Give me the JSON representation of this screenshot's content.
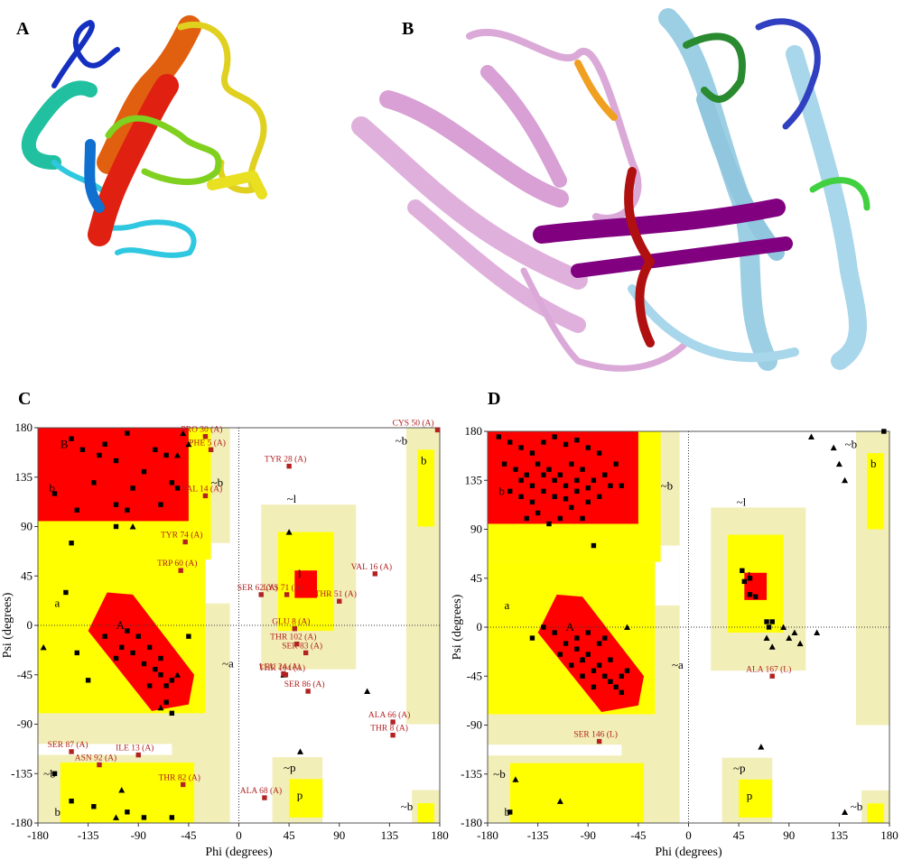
{
  "figure_labels": [
    "A",
    "B"
  ],
  "chart_data": [
    {
      "type": "scatter",
      "panel_label": "C",
      "x_label": "Phi (degrees)",
      "y_label": "Psi (degrees)",
      "xlim": [
        -180,
        180
      ],
      "ylim": [
        -180,
        180
      ],
      "xticks": [
        -180,
        -135,
        -90,
        -45,
        0,
        45,
        90,
        135,
        180
      ],
      "yticks": [
        -180,
        -135,
        -90,
        -45,
        0,
        45,
        90,
        135,
        180
      ],
      "region_labels": [
        "B",
        "b",
        "~b",
        "A",
        "a",
        "~a",
        "l",
        "~l",
        "~b",
        "b",
        "~p",
        "p",
        "~b",
        "~b",
        "b"
      ],
      "series": [
        {
          "marker": "square",
          "color": "#000000",
          "x": [
            -150,
            -140,
            -120,
            -100,
            -110,
            -130,
            -95,
            -85,
            -75,
            -65,
            -60,
            -55,
            -70,
            -110,
            -145,
            -165,
            -150,
            -110,
            -100,
            -125,
            -120,
            -105,
            -95,
            -85,
            -75,
            -70,
            -65,
            -60,
            -90,
            -80,
            -100,
            -110,
            -70,
            -80,
            -65,
            -155,
            -145,
            -135,
            -60,
            -45,
            -150,
            -130,
            -100,
            -85,
            -60,
            -165
          ],
          "values": [
            170,
            160,
            165,
            175,
            150,
            130,
            125,
            140,
            160,
            155,
            130,
            125,
            110,
            110,
            105,
            120,
            75,
            90,
            105,
            155,
            -10,
            -20,
            -25,
            -35,
            -40,
            -45,
            -55,
            -50,
            -10,
            -20,
            -5,
            -30,
            -30,
            -55,
            -70,
            30,
            -25,
            -50,
            -80,
            -10,
            -160,
            -165,
            -170,
            -175,
            -175,
            -135
          ]
        },
        {
          "marker": "triangle",
          "color": "#000000",
          "x": [
            -50,
            -45,
            -55,
            -95,
            -175,
            -70,
            -55,
            -105,
            55,
            45,
            40,
            115,
            -110
          ],
          "values": [
            175,
            165,
            155,
            90,
            -20,
            -75,
            -45,
            -150,
            -115,
            85,
            -45,
            -60,
            -175
          ]
        },
        {
          "marker": "square",
          "color": "#b22222",
          "labels": [
            "PRO 30 (A)",
            "PHE 5 (A)",
            "CYS 50 (A)",
            "TYR 28 (A)",
            "VAL 14 (A)",
            "TYR 74 (A)",
            "TRP 60 (A)",
            "VAL 16 (A)",
            "SER 62 (A)",
            "LYS 71 (A)",
            "THR 51 (A)",
            "GLU 8 (A)",
            "THR 102 (A)",
            "SER 83 (A)",
            "LEU 24 (A)",
            "THR 104 (A)",
            "SER 86 (A)",
            "ALA 66 (A)",
            "THR 8 (A)",
            "SER 87 (A)",
            "ILE 13 (A)",
            "ASN 92 (A)",
            "THR 82 (A)",
            "ALA 68 (A)"
          ],
          "x": [
            -30,
            -25,
            178,
            45,
            -30,
            -48,
            -52,
            122,
            20,
            43,
            90,
            50,
            52,
            60,
            40,
            42,
            62,
            138,
            138,
            -150,
            -90,
            -125,
            -50,
            23
          ],
          "values": [
            172,
            160,
            178,
            145,
            118,
            76,
            50,
            47,
            28,
            28,
            22,
            -3,
            -17,
            -25,
            -44,
            -45,
            -60,
            -88,
            -100,
            -115,
            -118,
            -127,
            -145,
            -157
          ]
        }
      ]
    },
    {
      "type": "scatter",
      "panel_label": "D",
      "x_label": "Phi (degrees)",
      "y_label": "Psi (degrees)",
      "xlim": [
        -180,
        180
      ],
      "ylim": [
        -180,
        180
      ],
      "xticks": [
        -180,
        -135,
        -90,
        -45,
        0,
        45,
        90,
        135,
        180
      ],
      "yticks": [
        -180,
        -135,
        -90,
        -45,
        0,
        45,
        90,
        135,
        180
      ],
      "region_labels": [
        "b",
        "~b",
        "A",
        "a",
        "~a",
        "l",
        "~l",
        "~b",
        "b",
        "~p",
        "p",
        "~b",
        "~b",
        "b"
      ],
      "series": [
        {
          "marker": "square",
          "color": "#000000",
          "x": [
            -170,
            -160,
            -150,
            -140,
            -130,
            -120,
            -110,
            -100,
            -90,
            -80,
            -165,
            -155,
            -145,
            -135,
            -125,
            -115,
            -105,
            -95,
            -85,
            -75,
            -160,
            -150,
            -140,
            -130,
            -120,
            -110,
            -100,
            -90,
            -80,
            -70,
            -145,
            -135,
            -125,
            -115,
            -105,
            -95,
            -140,
            -120,
            -100,
            -130,
            -150,
            -110,
            -90,
            -60,
            -65,
            -85,
            -120,
            -110,
            -100,
            -95,
            -90,
            -85,
            -80,
            -75,
            -70,
            -65,
            -60,
            -55,
            -100,
            -90,
            -80,
            -105,
            -85,
            -70,
            -115,
            -95,
            -60,
            -75,
            -130,
            -140,
            48,
            50,
            55,
            55,
            60,
            70,
            75,
            72,
            -160,
            175
          ],
          "values": [
            175,
            170,
            165,
            160,
            170,
            175,
            168,
            172,
            165,
            160,
            150,
            145,
            140,
            150,
            145,
            140,
            150,
            145,
            135,
            140,
            125,
            120,
            115,
            125,
            120,
            118,
            125,
            115,
            120,
            130,
            100,
            105,
            95,
            100,
            110,
            100,
            130,
            135,
            135,
            140,
            135,
            130,
            128,
            130,
            150,
            75,
            -5,
            -15,
            -20,
            -30,
            -25,
            -40,
            -35,
            -45,
            -50,
            -55,
            -45,
            -40,
            -10,
            -5,
            -15,
            -35,
            -55,
            -30,
            -25,
            -45,
            -60,
            -10,
            0,
            -10,
            52,
            42,
            45,
            30,
            28,
            5,
            5,
            0,
            -170,
            180
          ]
        },
        {
          "marker": "triangle",
          "color": "#000000",
          "x": [
            -55,
            -95,
            85,
            95,
            100,
            90,
            115,
            70,
            75,
            110,
            130,
            135,
            140,
            65,
            -115,
            140,
            -155
          ],
          "values": [
            0,
            -30,
            0,
            -5,
            -15,
            -10,
            -5,
            -10,
            -18,
            175,
            165,
            150,
            135,
            -110,
            -160,
            -170,
            -140
          ]
        },
        {
          "marker": "square",
          "color": "#b22222",
          "labels": [
            "ALA 167 (L)",
            "SER 146 (L)"
          ],
          "x": [
            75,
            -80
          ],
          "values": [
            -45,
            -105
          ]
        }
      ]
    }
  ]
}
